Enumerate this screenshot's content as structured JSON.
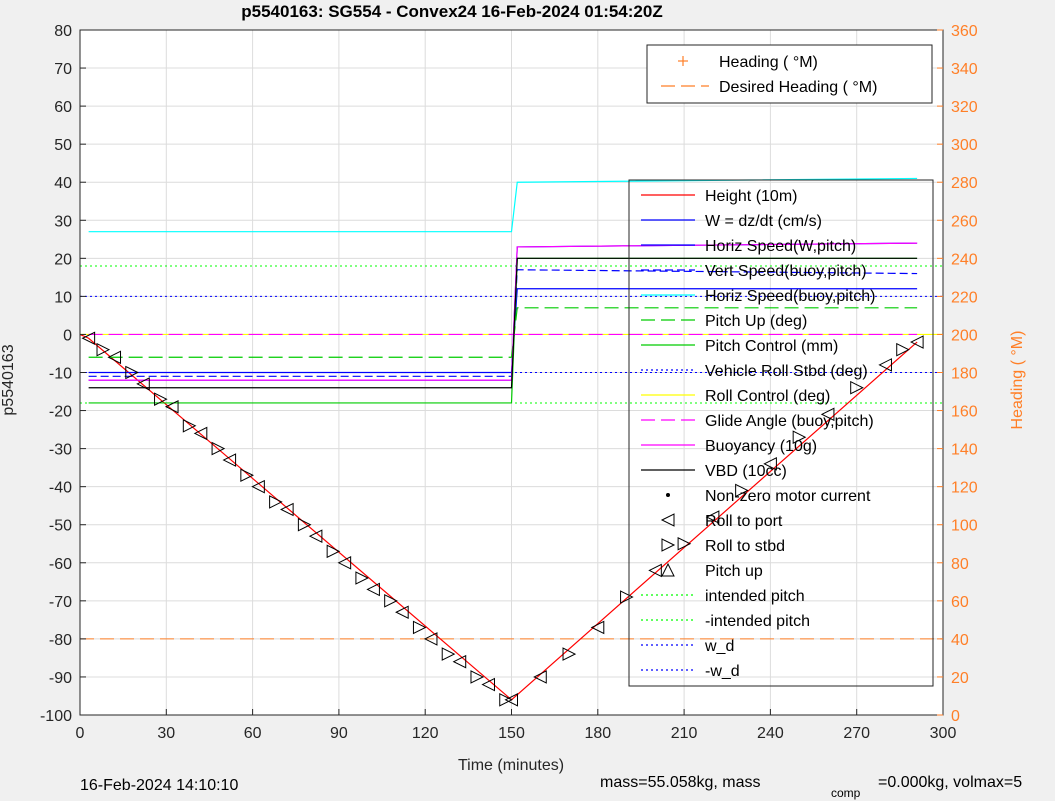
{
  "chart_data": {
    "type": "line",
    "title": "p5540163: SG554 - Convex24 16-Feb-2024 01:54:20Z",
    "xlabel": "Time (minutes)",
    "ylabel_left": "p5540163",
    "ylabel_right": "Heading ( °M)",
    "xlim": [
      0,
      300
    ],
    "ylim_left": [
      -100,
      80
    ],
    "ylim_right": [
      0,
      360
    ],
    "x_ticks": [
      "0",
      "30",
      "60",
      "90",
      "120",
      "150",
      "180",
      "210",
      "240",
      "270",
      "300"
    ],
    "y_left_ticks": [
      "80",
      "70",
      "60",
      "50",
      "40",
      "30",
      "20",
      "10",
      "0",
      "-10",
      "-20",
      "-30",
      "-40",
      "-50",
      "-60",
      "-70",
      "-80",
      "-90",
      "-100"
    ],
    "y_right_ticks": [
      "360",
      "340",
      "320",
      "300",
      "280",
      "260",
      "240",
      "220",
      "200",
      "180",
      "160",
      "140",
      "120",
      "100",
      "80",
      "60",
      "40",
      "20",
      "0"
    ],
    "grid": true,
    "legend_heading": {
      "placement": "top-right",
      "entries": [
        {
          "label": "Heading ( °M)",
          "color": "#ff7f27",
          "style": "marker-plus"
        },
        {
          "label": "Desired Heading ( °M)",
          "color": "#ff7f27",
          "style": "long-dash"
        }
      ]
    },
    "legend_main": {
      "placement": "right",
      "entries": [
        {
          "label": "Height (10m)",
          "color": "#ff0000",
          "style": "solid"
        },
        {
          "label": "W = dz/dt (cm/s)",
          "color": "#0000ff",
          "style": "solid"
        },
        {
          "label": "Horiz Speed(W,pitch)",
          "color": "#0000ff",
          "style": "solid"
        },
        {
          "label": "Vert Speed(buoy,pitch)",
          "color": "#0000ff",
          "style": "dash"
        },
        {
          "label": "Horiz Speed(buoy,pitch)",
          "color": "#00ffff",
          "style": "solid"
        },
        {
          "label": "Pitch Up (deg)",
          "color": "#00cc00",
          "style": "long-dash"
        },
        {
          "label": "Pitch Control (mm)",
          "color": "#00cc00",
          "style": "solid"
        },
        {
          "label": "Vehicle Roll Stbd (deg)",
          "color": "#0000ff",
          "style": "dotted"
        },
        {
          "label": "Roll Control (deg)",
          "color": "#ffff00",
          "style": "solid"
        },
        {
          "label": "Glide Angle (buoy,pitch)",
          "color": "#ff00ff",
          "style": "long-dash"
        },
        {
          "label": "Buoyancy (10g)",
          "color": "#ff00ff",
          "style": "solid"
        },
        {
          "label": "VBD (10cc)",
          "color": "#000000",
          "style": "solid"
        },
        {
          "label": "Non-zero motor current",
          "color": "#000000",
          "style": "dot"
        },
        {
          "label": "Roll to port",
          "color": "#000000",
          "style": "tri-left"
        },
        {
          "label": "Roll to stbd",
          "color": "#000000",
          "style": "tri-right"
        },
        {
          "label": "Pitch up",
          "color": "#000000",
          "style": "tri-up"
        },
        {
          "label": "intended pitch",
          "color": "#00ff00",
          "style": "dotted"
        },
        {
          "label": "-intended pitch",
          "color": "#00ff00",
          "style": "dotted"
        },
        {
          "label": "w_d",
          "color": "#0000ff",
          "style": "dotted"
        },
        {
          "label": "-w_d",
          "color": "#0000ff",
          "style": "dotted"
        }
      ]
    },
    "series": [
      {
        "name": "Height (10m)",
        "x": [
          0,
          3,
          150,
          291
        ],
        "y": [
          0,
          -1,
          -96,
          -2
        ]
      },
      {
        "name": "W = dz/dt (cm/s)",
        "x": [
          3,
          150,
          152,
          291
        ],
        "y": [
          -10,
          -10,
          12,
          12
        ]
      },
      {
        "name": "Horiz Speed(W,pitch)",
        "x": [
          3,
          150,
          152,
          291
        ],
        "y": [
          -12,
          -12,
          23,
          24
        ]
      },
      {
        "name": "Vert Speed(buoy,pitch)",
        "x": [
          3,
          150,
          152,
          291
        ],
        "y": [
          -11,
          -11,
          17,
          16
        ]
      },
      {
        "name": "Horiz Speed(buoy,pitch)",
        "x": [
          3,
          150,
          152,
          291
        ],
        "y": [
          27,
          27,
          40,
          41
        ]
      },
      {
        "name": "Pitch Up (deg)",
        "x": [
          3,
          150,
          152,
          291
        ],
        "y": [
          -6,
          -6,
          7,
          7
        ]
      },
      {
        "name": "Pitch Control (mm)",
        "x": [
          3,
          150,
          152,
          291
        ],
        "y": [
          -18,
          -18,
          20,
          20
        ]
      },
      {
        "name": "Roll Control (deg)",
        "x": [
          0,
          300
        ],
        "y": [
          0,
          0
        ]
      },
      {
        "name": "Glide Angle (buoy,pitch)",
        "x": [
          3,
          150,
          152,
          291
        ],
        "y": [
          0,
          0,
          0,
          0
        ]
      },
      {
        "name": "Buoyancy (10g)",
        "x": [
          3,
          150,
          152,
          291
        ],
        "y": [
          -12,
          -12,
          23,
          24
        ]
      },
      {
        "name": "VBD (10cc)",
        "x": [
          3,
          150,
          152,
          291
        ],
        "y": [
          -14,
          -14,
          20,
          20
        ]
      }
    ],
    "reference_lines": {
      "intended_pitch": 18,
      "neg_intended_pitch": -18,
      "w_d": 10,
      "neg_w_d": -10
    },
    "markers": {
      "roll_to_port": {
        "x": [
          3,
          12,
          22,
          32,
          42,
          52,
          62,
          72,
          82,
          92,
          102,
          112,
          122,
          132,
          142,
          150,
          160,
          180,
          200,
          220,
          240,
          260,
          280,
          291
        ],
        "y": [
          -1,
          -6,
          -13,
          -19,
          -26,
          -33,
          -40,
          -46,
          -53,
          -60,
          -67,
          -73,
          -80,
          -86,
          -92,
          -96,
          -90,
          -77,
          -62,
          -48,
          -34,
          -21,
          -8,
          -2
        ]
      },
      "roll_to_stbd": {
        "x": [
          8,
          18,
          28,
          38,
          48,
          58,
          68,
          78,
          88,
          98,
          108,
          118,
          128,
          138,
          148,
          170,
          190,
          210,
          230,
          250,
          270,
          286
        ],
        "y": [
          -4,
          -10,
          -17,
          -24,
          -30,
          -37,
          -44,
          -50,
          -57,
          -64,
          -70,
          -77,
          -84,
          -90,
          -96,
          -84,
          -69,
          -55,
          -41,
          -27,
          -14,
          -4
        ]
      }
    },
    "heading": {
      "desired_heading": 40,
      "desired_heading_ascent": 40
    }
  },
  "footer": {
    "timestamp": "16-Feb-2024 14:10:10",
    "mass_text": "mass=55.058kg, mass",
    "comp_sub": "comp",
    "comp_text": "=0.000kg, volmax=5"
  }
}
